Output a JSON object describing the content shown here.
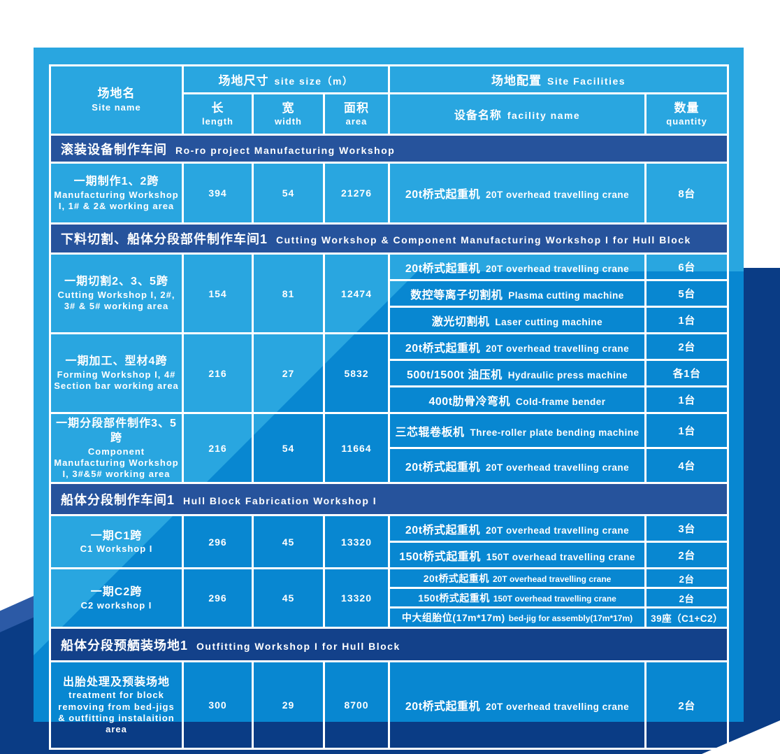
{
  "colors": {
    "panel_light": "#29A6E0",
    "panel_dark": "#0887D1",
    "navy": "#0A3C85",
    "section_navy": "#26539C",
    "section_dark_navy": "#13418A",
    "accent": "#2C5AA6",
    "border_white": "#FFFFFF",
    "text_white": "#FFFFFF"
  },
  "table": {
    "header": {
      "site_name_zh": "场地名",
      "site_name_en": "Site name",
      "site_size_zh": "场地尺寸",
      "site_size_en": "site size（m）",
      "length_zh": "长",
      "length_en": "length",
      "width_zh": "宽",
      "width_en": "width",
      "area_zh": "面积",
      "area_en": "area",
      "facilities_zh": "场地配置",
      "facilities_en": "Site Facilities",
      "facility_name_zh": "设备名称",
      "facility_name_en": "facility name",
      "quantity_zh": "数量",
      "quantity_en": "quantity"
    },
    "sections": [
      {
        "title_zh": "滚装设备制作车间",
        "title_en": "Ro-ro project Manufacturing Workshop",
        "groups": [
          {
            "site_zh": "一期制作1、2跨",
            "site_en": "Manufacturing Workshop I, 1# & 2& working area",
            "length": "394",
            "width": "54",
            "area": "21276",
            "facilities": [
              {
                "zh": "20t桥式起重机",
                "en": "20T overhead travelling crane",
                "qty": "8台"
              }
            ]
          }
        ]
      },
      {
        "title_zh": "下料切割、船体分段部件制作车间1",
        "title_en": "Cutting Workshop & Component Manufacturing Workshop I for Hull Block",
        "groups": [
          {
            "site_zh": "一期切割2、3、5跨",
            "site_en": "Cutting Workshop I, 2#, 3# & 5# working area",
            "length": "154",
            "width": "81",
            "area": "12474",
            "facilities": [
              {
                "zh": "20t桥式起重机",
                "en": "20T overhead travelling crane",
                "qty": "6台"
              },
              {
                "zh": "数控等离子切割机",
                "en": "Plasma cutting machine",
                "qty": "5台"
              },
              {
                "zh": "激光切割机",
                "en": "Laser cutting machine",
                "qty": "1台"
              }
            ]
          },
          {
            "site_zh": "一期加工、型材4跨",
            "site_en": "Forming Workshop I, 4# Section bar working area",
            "length": "216",
            "width": "27",
            "area": "5832",
            "facilities": [
              {
                "zh": "20t桥式起重机",
                "en": "20T overhead travelling crane",
                "qty": "2台"
              },
              {
                "zh": "500t/1500t 油压机",
                "en": "Hydraulic press machine",
                "qty": "各1台"
              },
              {
                "zh": "400t肋骨冷弯机",
                "en": "Cold-frame bender",
                "qty": "1台"
              }
            ]
          },
          {
            "site_zh": "一期分段部件制作3、5跨",
            "site_en": "Component Manufacturing Workshop I, 3#&5# working area",
            "length": "216",
            "width": "54",
            "area": "11664",
            "facilities": [
              {
                "zh": "三芯辊卷板机",
                "en": "Three-roller plate bending machine",
                "qty": "1台"
              },
              {
                "zh": "20t桥式起重机",
                "en": "20T overhead travelling crane",
                "qty": "4台"
              }
            ]
          }
        ]
      },
      {
        "title_zh": "船体分段制作车间1",
        "title_en": "Hull Block Fabrication Workshop I",
        "groups": [
          {
            "site_zh": "一期C1跨",
            "site_en": "C1 Workshop I",
            "length": "296",
            "width": "45",
            "area": "13320",
            "facilities": [
              {
                "zh": "20t桥式起重机",
                "en": "20T overhead travelling crane",
                "qty": "3台"
              },
              {
                "zh": "150t桥式起重机",
                "en": "150T overhead travelling crane",
                "qty": "2台"
              }
            ]
          },
          {
            "site_zh": "一期C2跨",
            "site_en": "C2 workshop I",
            "length": "296",
            "width": "45",
            "area": "13320",
            "facilities": [
              {
                "zh": "20t桥式起重机",
                "en": "20T overhead travelling crane",
                "qty": "2台"
              },
              {
                "zh": "150t桥式起重机",
                "en": "150T overhead travelling crane",
                "qty": "2台"
              },
              {
                "zh": "中大组胎位(17m*17m)",
                "en": "bed-jig for assembly(17m*17m)",
                "qty": "39座（C1+C2）"
              }
            ]
          }
        ]
      },
      {
        "title_zh": "船体分段预舾装场地1",
        "title_en": "Outfitting Workshop I for Hull Block",
        "groups": [
          {
            "site_zh": "出胎处理及预装场地",
            "site_en": "treatment for block removing from bed-jigs & outfitting instalaition area",
            "length": "300",
            "width": "29",
            "area": "8700",
            "facilities": [
              {
                "zh": "20t桥式起重机",
                "en": "20T overhead travelling crane",
                "qty": "2台"
              }
            ]
          }
        ]
      }
    ]
  }
}
